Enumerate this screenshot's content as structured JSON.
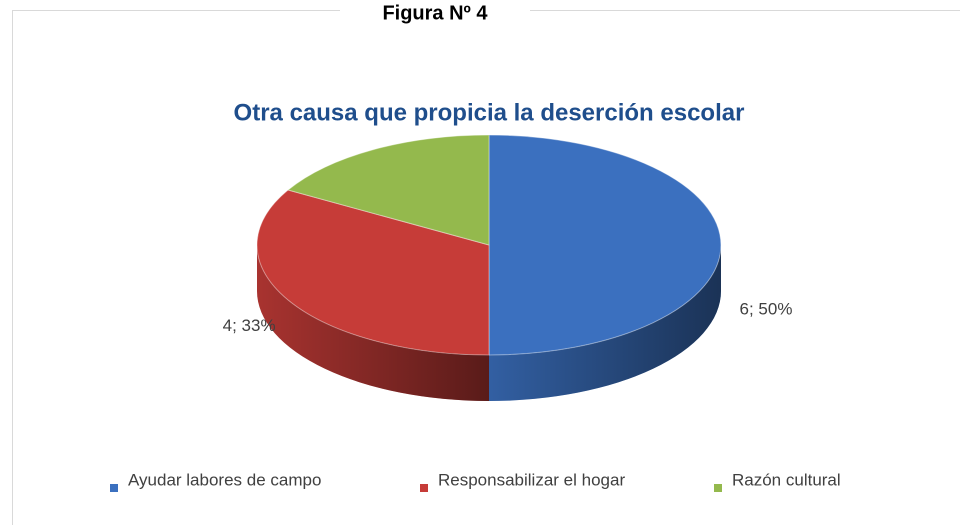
{
  "figure_label": "Figura Nº 4",
  "chart_data": {
    "type": "pie3d",
    "title": "Otra causa que propicia la deserción escolar",
    "categories": [
      "Ayudar labores de campo",
      "Responsabilizar el hogar",
      "Razón cultural"
    ],
    "values": [
      6,
      4,
      2
    ],
    "value_labels": [
      "6; 50%",
      "4; 33%",
      null
    ],
    "colors": [
      "#3b70bf",
      "#c63c38",
      "#94b94d"
    ],
    "legend": "bottom"
  }
}
